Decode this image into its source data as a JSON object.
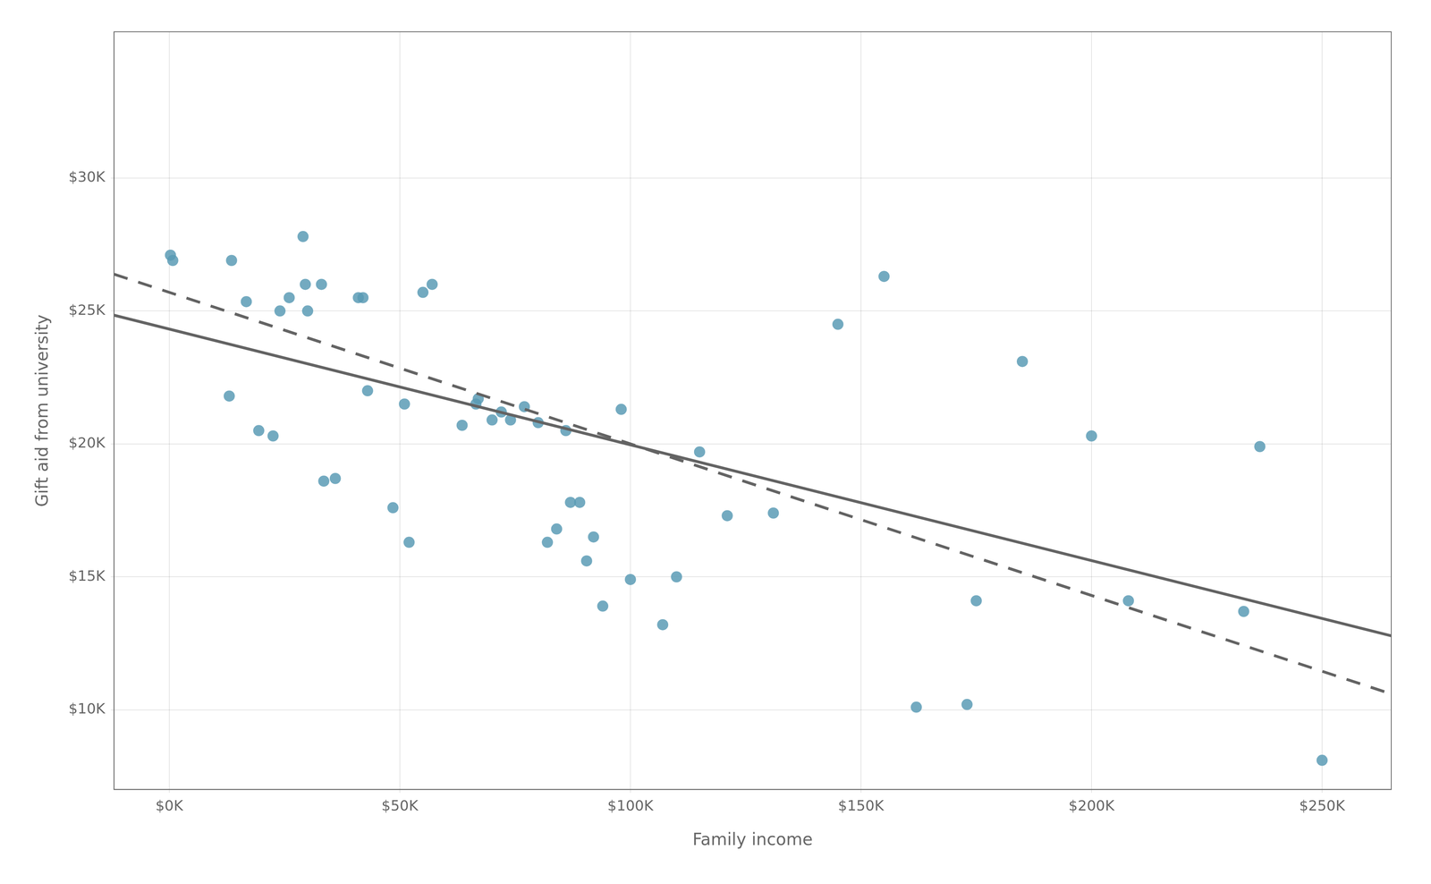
{
  "chart_data": {
    "type": "scatter",
    "xlabel": "Family income",
    "ylabel": "Gift aid from university",
    "series": [
      {
        "type": "scatter",
        "color": "#5B9BB5",
        "marker": "circle",
        "x": [
          0.25,
          0.75,
          13.0,
          13.5,
          16.7,
          19.4,
          22.5,
          24.0,
          26.0,
          29.0,
          29.5,
          30.0,
          33.0,
          33.5,
          36.0,
          41.0,
          42.0,
          43.0,
          48.5,
          51.0,
          52.0,
          55.0,
          57.0,
          63.5,
          66.5,
          67.0,
          70.0,
          72.0,
          74.0,
          77.0,
          80.0,
          82.0,
          84.0,
          86.0,
          87.0,
          89.0,
          90.5,
          92.0,
          94.0,
          98.0,
          100.0,
          107.0,
          110.0,
          115.0,
          121.0,
          131.0,
          145.0,
          155.0,
          162.0,
          173.0,
          175.0,
          185.0,
          200.0,
          208.0,
          233.0,
          236.5,
          250.0
        ],
        "values": [
          27100,
          26900,
          21800,
          26900,
          25350,
          20500,
          20300,
          25000,
          25500,
          27800,
          26000,
          25000,
          26000,
          18600,
          18700,
          25500,
          25500,
          22000,
          17600,
          21500,
          16300,
          25700,
          26000,
          20700,
          21500,
          21700,
          20900,
          21200,
          20900,
          21400,
          20800,
          16300,
          16800,
          20500,
          17800,
          17800,
          15600,
          16500,
          13900,
          21300,
          14900,
          13200,
          15000,
          19700,
          17300,
          17400,
          24500,
          26300,
          10100,
          10200,
          14100,
          23100,
          20300,
          14100,
          13700,
          19900,
          8100
        ]
      },
      {
        "type": "line",
        "color": "#636363",
        "line_style": "solid",
        "x": [
          -12,
          265
        ],
        "values": [
          24841.69,
          12783.88
        ]
      },
      {
        "type": "line",
        "color": "#636363",
        "line_style": "dashed",
        "x": [
          -12,
          265
        ],
        "values": [
          26384,
          10595
        ]
      }
    ],
    "xlim": [
      -12,
      265
    ],
    "ylim": [
      7000,
      35500
    ],
    "xticks": [
      {
        "value": 0,
        "label": "$0K"
      },
      {
        "value": 50,
        "label": "$50K"
      },
      {
        "value": 100,
        "label": "$100K"
      },
      {
        "value": 150,
        "label": "$150K"
      },
      {
        "value": 200,
        "label": "$200K"
      },
      {
        "value": 250,
        "label": "$250K"
      }
    ],
    "yticks": [
      {
        "value": 10000,
        "label": "$10K"
      },
      {
        "value": 15000,
        "label": "$15K"
      },
      {
        "value": 20000,
        "label": "$20K"
      },
      {
        "value": 25000,
        "label": "$25K"
      },
      {
        "value": 30000,
        "label": "$30K"
      }
    ],
    "grid": true
  }
}
